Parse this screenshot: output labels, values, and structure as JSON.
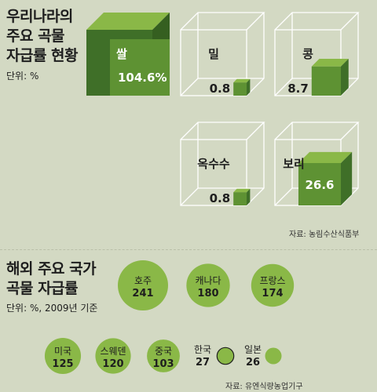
{
  "section1": {
    "title_lines": [
      "우리나라의",
      "주요 곡물",
      "자급률 현황"
    ],
    "unit": "단위: %",
    "source": "자료: 농림수산식품부"
  },
  "section2": {
    "title_lines": [
      "해외 주요 국가",
      "곡물 자급률"
    ],
    "unit": "단위: %, 2009년 기준",
    "source": "자료: 유엔식량농업기구"
  },
  "colors": {
    "background": "#d3d9c3",
    "dark_green": "#3f6f28",
    "mid_green": "#5e9233",
    "light_green": "#8ab847",
    "wire": "#ffffff"
  },
  "chart_data": [
    {
      "type": "bar",
      "title": "우리나라의 주요 곡물 자급률 현황",
      "unit": "%",
      "categories": [
        "쌀",
        "밀",
        "콩",
        "옥수수",
        "보리"
      ],
      "values": [
        104.6,
        0.8,
        8.7,
        0.8,
        26.6
      ],
      "value_labels": [
        "104.6%",
        "0.8",
        "8.7",
        "0.8",
        "26.6"
      ]
    },
    {
      "type": "scatter",
      "title": "해외 주요 국가 곡물 자급률",
      "unit": "%, 2009년 기준",
      "categories": [
        "호주",
        "캐나다",
        "프랑스",
        "미국",
        "스웨덴",
        "중국",
        "한국",
        "일본"
      ],
      "values": [
        241,
        180,
        174,
        125,
        120,
        103,
        27,
        26
      ]
    }
  ]
}
